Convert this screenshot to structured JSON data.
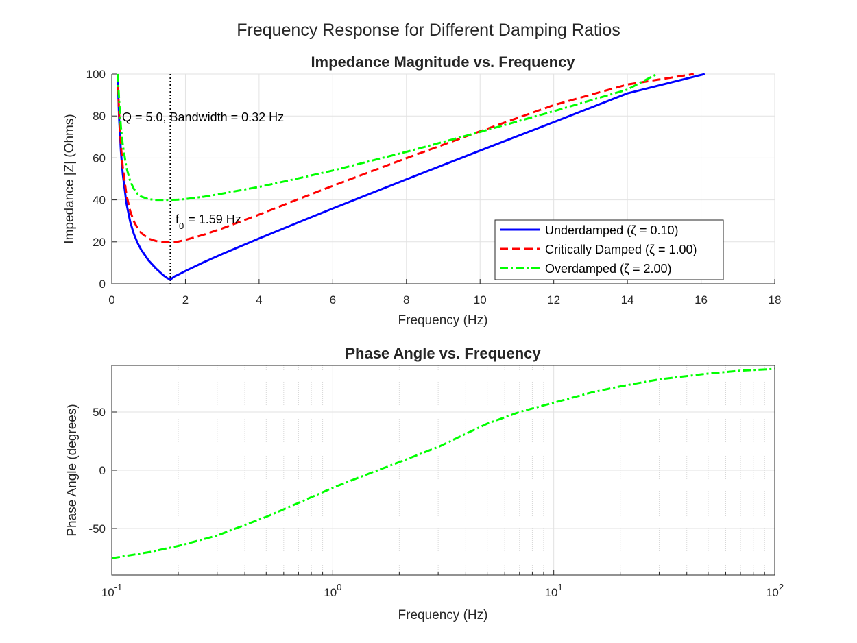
{
  "figure": {
    "title": "Frequency Response for Different Damping Ratios"
  },
  "chart_data": [
    {
      "type": "line",
      "title": "Impedance Magnitude vs. Frequency",
      "xlabel": "Frequency (Hz)",
      "ylabel": "Impedance |Z| (Ohms)",
      "xlim": [
        0,
        18
      ],
      "ylim": [
        0,
        100
      ],
      "xticks": [
        0,
        2,
        4,
        6,
        8,
        10,
        12,
        14,
        16,
        18
      ],
      "yticks": [
        0,
        20,
        40,
        60,
        80,
        100
      ],
      "xscale": "linear",
      "grid": true,
      "legend_position": "lower-right",
      "annotations": {
        "resonance_line_x": 1.59,
        "f0_label": "= 1.59 Hz",
        "f0_symbol": "f",
        "f0_subscript": "0",
        "q_label": "Q = 5.0, Bandwidth = 0.32 Hz"
      },
      "series": [
        {
          "name": "Underdamped (ζ = 0.10)",
          "color": "#0000ff",
          "style": "solid",
          "x": [
            0.16,
            0.2,
            0.25,
            0.3,
            0.4,
            0.5,
            0.6,
            0.7,
            0.8,
            1.0,
            1.2,
            1.4,
            1.5,
            1.59,
            1.7,
            1.8,
            2.0,
            2.5,
            3.0,
            4.0,
            5.0,
            6.0,
            8.0,
            10.0,
            12.0,
            14.0,
            16.1
          ],
          "y": [
            100,
            79,
            62.8,
            52.2,
            38.2,
            29.6,
            23.8,
            19.5,
            16.2,
            11.1,
            7.3,
            4.1,
            2.8,
            2.0,
            3.5,
            4.3,
            6.1,
            10.3,
            14.2,
            21.6,
            28.8,
            35.9,
            49.8,
            63.5,
            77.1,
            90.8,
            100
          ]
        },
        {
          "name": "Critically Damped (ζ = 1.00)",
          "color": "#ff0000",
          "style": "dashed",
          "x": [
            0.16,
            0.2,
            0.25,
            0.3,
            0.4,
            0.5,
            0.6,
            0.7,
            0.8,
            1.0,
            1.2,
            1.4,
            1.59,
            1.8,
            2.0,
            2.5,
            3.0,
            4.0,
            5.0,
            6.0,
            8.0,
            10.0,
            12.0,
            14.0,
            15.8
          ],
          "y": [
            100,
            81.3,
            65.8,
            55.6,
            42.4,
            34.7,
            29.8,
            26.5,
            24.2,
            21.5,
            20.4,
            20.0,
            20.0,
            20.1,
            20.9,
            23.4,
            26.4,
            33.0,
            39.9,
            46.7,
            59.9,
            72.7,
            85.2,
            95.0,
            100
          ]
        },
        {
          "name": "Overdamped (ζ = 2.00)",
          "color": "#00ff00",
          "style": "dashdot",
          "x": [
            0.16,
            0.2,
            0.25,
            0.3,
            0.4,
            0.5,
            0.6,
            0.7,
            0.8,
            1.0,
            1.2,
            1.4,
            1.59,
            1.8,
            2.0,
            2.5,
            3.0,
            4.0,
            5.0,
            6.0,
            8.0,
            10.0,
            12.0,
            14.0,
            14.8
          ],
          "y": [
            100,
            87.9,
            74.6,
            66.2,
            55.3,
            49.0,
            45.3,
            42.9,
            41.6,
            40.3,
            40.0,
            40.0,
            40.0,
            40.1,
            40.4,
            41.5,
            43.0,
            46.2,
            50.0,
            54.0,
            62.9,
            72.4,
            82.3,
            92.6,
            100
          ]
        }
      ]
    },
    {
      "type": "line",
      "title": "Phase Angle vs. Frequency",
      "xlabel": "Frequency (Hz)",
      "ylabel": "Phase Angle (degrees)",
      "xscale": "log",
      "xlim": [
        0.1,
        100
      ],
      "ylim": [
        -90,
        90
      ],
      "xticks": [
        {
          "base": "10",
          "exp": "-1",
          "value": 0.1
        },
        {
          "base": "10",
          "exp": "0",
          "value": 1
        },
        {
          "base": "10",
          "exp": "1",
          "value": 10
        },
        {
          "base": "10",
          "exp": "2",
          "value": 100
        }
      ],
      "yticks": [
        -50,
        0,
        50
      ],
      "grid": true,
      "minor_grid": true,
      "series": [
        {
          "color": "#00ff00",
          "style": "dashdot",
          "x": [
            0.1,
            0.15,
            0.2,
            0.3,
            0.5,
            0.7,
            1.0,
            1.5,
            2.0,
            3.0,
            5.0,
            7.0,
            10.0,
            15.0,
            20.0,
            30.0,
            50.0,
            70.0,
            100.0
          ],
          "y": [
            -75.5,
            -70,
            -65,
            -56,
            -40,
            -28,
            -15,
            -2,
            7,
            20,
            40,
            50,
            58,
            67,
            72,
            78,
            83,
            85.5,
            87
          ]
        }
      ]
    }
  ]
}
